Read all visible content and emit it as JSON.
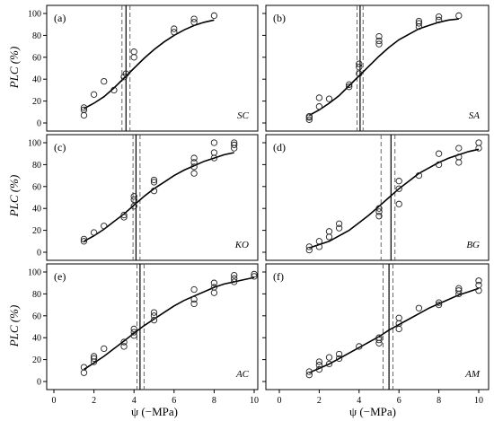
{
  "figure": {
    "ylabel": "PLC (%)",
    "xlabel": "ψ (−MPa)",
    "x_ticks": [
      "0",
      "2",
      "4",
      "6",
      "8",
      "10"
    ],
    "y_ticks": [
      "0",
      "20",
      "40",
      "60",
      "80",
      "100"
    ]
  },
  "chart_data": [
    {
      "type": "scatter",
      "panel": "(a)",
      "site": "SC",
      "xlim": [
        0,
        10
      ],
      "ylim": [
        0,
        100
      ],
      "points": [
        [
          1.5,
          14
        ],
        [
          1.5,
          12
        ],
        [
          1.5,
          7
        ],
        [
          2,
          26
        ],
        [
          2.5,
          38
        ],
        [
          3,
          30
        ],
        [
          3.5,
          42
        ],
        [
          3.6,
          45
        ],
        [
          4,
          60
        ],
        [
          4,
          65
        ],
        [
          6,
          83
        ],
        [
          6,
          86
        ],
        [
          7,
          92
        ],
        [
          7,
          95
        ],
        [
          8,
          98
        ]
      ],
      "fit": [
        [
          1.5,
          13
        ],
        [
          2,
          18
        ],
        [
          2.5,
          24
        ],
        [
          3,
          32
        ],
        [
          3.5,
          41
        ],
        [
          4,
          50
        ],
        [
          4.5,
          59
        ],
        [
          5,
          67
        ],
        [
          5.5,
          74
        ],
        [
          6,
          80
        ],
        [
          6.5,
          85
        ],
        [
          7,
          89
        ],
        [
          7.5,
          92
        ],
        [
          8,
          94
        ]
      ],
      "vlines": [
        {
          "x": 3.4,
          "style": "dashed"
        },
        {
          "x": 3.6,
          "style": "solid"
        },
        {
          "x": 3.8,
          "style": "dashed"
        }
      ]
    },
    {
      "type": "scatter",
      "panel": "(b)",
      "site": "SA",
      "xlim": [
        0,
        10
      ],
      "ylim": [
        0,
        100
      ],
      "points": [
        [
          1.5,
          5
        ],
        [
          1.5,
          6
        ],
        [
          1.5,
          3
        ],
        [
          2,
          15
        ],
        [
          2,
          23
        ],
        [
          2.5,
          22
        ],
        [
          3.5,
          33
        ],
        [
          3.5,
          35
        ],
        [
          4,
          45
        ],
        [
          4,
          51
        ],
        [
          4,
          54
        ],
        [
          5,
          72
        ],
        [
          5,
          75
        ],
        [
          5,
          79
        ],
        [
          7,
          88
        ],
        [
          7,
          91
        ],
        [
          7,
          93
        ],
        [
          8,
          94
        ],
        [
          8,
          97
        ],
        [
          9,
          98
        ]
      ],
      "fit": [
        [
          1.5,
          7
        ],
        [
          2,
          12
        ],
        [
          2.5,
          18
        ],
        [
          3,
          25
        ],
        [
          3.5,
          34
        ],
        [
          4,
          43
        ],
        [
          4.5,
          52
        ],
        [
          5,
          61
        ],
        [
          5.5,
          69
        ],
        [
          6,
          76
        ],
        [
          6.5,
          81
        ],
        [
          7,
          86
        ],
        [
          7.5,
          89
        ],
        [
          8,
          92
        ],
        [
          8.5,
          94
        ],
        [
          9,
          95
        ]
      ],
      "vlines": [
        {
          "x": 3.9,
          "style": "dashed"
        },
        {
          "x": 4.05,
          "style": "solid"
        },
        {
          "x": 4.2,
          "style": "dashed"
        }
      ]
    },
    {
      "type": "scatter",
      "panel": "(c)",
      "site": "KO",
      "xlim": [
        0,
        10
      ],
      "ylim": [
        0,
        100
      ],
      "points": [
        [
          1.5,
          10
        ],
        [
          1.5,
          12
        ],
        [
          2,
          18
        ],
        [
          2.5,
          24
        ],
        [
          3.5,
          32
        ],
        [
          3.5,
          34
        ],
        [
          4,
          42
        ],
        [
          4,
          48
        ],
        [
          4,
          51
        ],
        [
          5,
          56
        ],
        [
          5,
          64
        ],
        [
          5,
          66
        ],
        [
          7,
          72
        ],
        [
          7,
          78
        ],
        [
          7,
          82
        ],
        [
          7,
          86
        ],
        [
          8,
          86
        ],
        [
          8,
          91
        ],
        [
          8,
          100
        ],
        [
          9,
          95
        ],
        [
          9,
          98
        ],
        [
          9,
          100
        ]
      ],
      "fit": [
        [
          1.5,
          10
        ],
        [
          2,
          15
        ],
        [
          2.5,
          21
        ],
        [
          3,
          28
        ],
        [
          3.5,
          35
        ],
        [
          4,
          43
        ],
        [
          4.5,
          51
        ],
        [
          5,
          58
        ],
        [
          5.5,
          64
        ],
        [
          6,
          70
        ],
        [
          6.5,
          75
        ],
        [
          7,
          79
        ],
        [
          7.5,
          83
        ],
        [
          8,
          86
        ],
        [
          8.5,
          89
        ],
        [
          9,
          91
        ]
      ],
      "vlines": [
        {
          "x": 3.95,
          "style": "dashed"
        },
        {
          "x": 4.1,
          "style": "solid"
        },
        {
          "x": 4.3,
          "style": "dashed"
        }
      ]
    },
    {
      "type": "scatter",
      "panel": "(d)",
      "site": "BG",
      "xlim": [
        0,
        10
      ],
      "ylim": [
        0,
        100
      ],
      "points": [
        [
          1.5,
          2
        ],
        [
          1.5,
          5
        ],
        [
          2,
          5
        ],
        [
          2,
          10
        ],
        [
          2.5,
          14
        ],
        [
          2.5,
          19
        ],
        [
          3,
          22
        ],
        [
          3,
          26
        ],
        [
          5,
          33
        ],
        [
          5,
          37
        ],
        [
          5,
          40
        ],
        [
          6,
          44
        ],
        [
          6,
          58
        ],
        [
          6,
          65
        ],
        [
          7,
          70
        ],
        [
          8,
          80
        ],
        [
          8,
          90
        ],
        [
          9,
          82
        ],
        [
          9,
          87
        ],
        [
          9,
          95
        ],
        [
          10,
          95
        ],
        [
          10,
          100
        ]
      ],
      "fit": [
        [
          1.5,
          4
        ],
        [
          2,
          7
        ],
        [
          2.5,
          10
        ],
        [
          3,
          15
        ],
        [
          3.5,
          20
        ],
        [
          4,
          27
        ],
        [
          4.5,
          34
        ],
        [
          5,
          42
        ],
        [
          5.5,
          50
        ],
        [
          6,
          58
        ],
        [
          6.5,
          65
        ],
        [
          7,
          72
        ],
        [
          7.5,
          77
        ],
        [
          8,
          82
        ],
        [
          8.5,
          86
        ],
        [
          9,
          89
        ],
        [
          9.5,
          92
        ],
        [
          10,
          94
        ]
      ],
      "vlines": [
        {
          "x": 5.1,
          "style": "dashed"
        },
        {
          "x": 5.6,
          "style": "solid"
        },
        {
          "x": 5.8,
          "style": "dashed"
        }
      ]
    },
    {
      "type": "scatter",
      "panel": "(e)",
      "site": "AC",
      "xlim": [
        0,
        10
      ],
      "ylim": [
        0,
        100
      ],
      "points": [
        [
          1.5,
          8
        ],
        [
          1.5,
          13
        ],
        [
          2,
          18
        ],
        [
          2,
          21
        ],
        [
          2,
          23
        ],
        [
          2.5,
          30
        ],
        [
          3.5,
          32
        ],
        [
          3.5,
          36
        ],
        [
          4,
          42
        ],
        [
          4,
          45
        ],
        [
          4,
          48
        ],
        [
          5,
          56
        ],
        [
          5,
          60
        ],
        [
          5,
          63
        ],
        [
          7,
          71
        ],
        [
          7,
          75
        ],
        [
          7,
          84
        ],
        [
          8,
          81
        ],
        [
          8,
          86
        ],
        [
          8,
          90
        ],
        [
          9,
          91
        ],
        [
          9,
          94
        ],
        [
          9,
          97
        ],
        [
          10,
          96
        ],
        [
          10,
          98
        ]
      ],
      "fit": [
        [
          1.5,
          11
        ],
        [
          2,
          17
        ],
        [
          2.5,
          23
        ],
        [
          3,
          30
        ],
        [
          3.5,
          37
        ],
        [
          4,
          44
        ],
        [
          4.5,
          51
        ],
        [
          5,
          57
        ],
        [
          5.5,
          63
        ],
        [
          6,
          69
        ],
        [
          6.5,
          74
        ],
        [
          7,
          78
        ],
        [
          7.5,
          82
        ],
        [
          8,
          86
        ],
        [
          8.5,
          89
        ],
        [
          9,
          91
        ],
        [
          9.5,
          93
        ],
        [
          10,
          95
        ]
      ],
      "vlines": [
        {
          "x": 4.15,
          "style": "dashed"
        },
        {
          "x": 4.3,
          "style": "solid"
        },
        {
          "x": 4.5,
          "style": "dashed"
        }
      ]
    },
    {
      "type": "scatter",
      "panel": "(f)",
      "site": "AM",
      "xlim": [
        0,
        10
      ],
      "ylim": [
        0,
        100
      ],
      "points": [
        [
          1.5,
          6
        ],
        [
          1.5,
          9
        ],
        [
          2,
          11
        ],
        [
          2,
          15
        ],
        [
          2,
          18
        ],
        [
          2.5,
          16
        ],
        [
          2.5,
          22
        ],
        [
          3,
          21
        ],
        [
          3,
          25
        ],
        [
          4,
          32
        ],
        [
          5,
          35
        ],
        [
          5,
          38
        ],
        [
          5,
          40
        ],
        [
          6,
          48
        ],
        [
          6,
          53
        ],
        [
          6,
          58
        ],
        [
          7,
          67
        ],
        [
          8,
          70
        ],
        [
          8,
          72
        ],
        [
          9,
          80
        ],
        [
          9,
          83
        ],
        [
          9,
          85
        ],
        [
          10,
          83
        ],
        [
          10,
          88
        ],
        [
          10,
          92
        ]
      ],
      "fit": [
        [
          1.5,
          8
        ],
        [
          2,
          12
        ],
        [
          2.5,
          16
        ],
        [
          3,
          21
        ],
        [
          3.5,
          26
        ],
        [
          4,
          31
        ],
        [
          4.5,
          36
        ],
        [
          5,
          41
        ],
        [
          5.5,
          47
        ],
        [
          6,
          52
        ],
        [
          6.5,
          57
        ],
        [
          7,
          62
        ],
        [
          7.5,
          67
        ],
        [
          8,
          71
        ],
        [
          8.5,
          75
        ],
        [
          9,
          79
        ],
        [
          9.5,
          82
        ],
        [
          10,
          85
        ]
      ],
      "vlines": [
        {
          "x": 5.2,
          "style": "dashed"
        },
        {
          "x": 5.5,
          "style": "solid"
        },
        {
          "x": 5.7,
          "style": "dashed"
        }
      ]
    }
  ]
}
